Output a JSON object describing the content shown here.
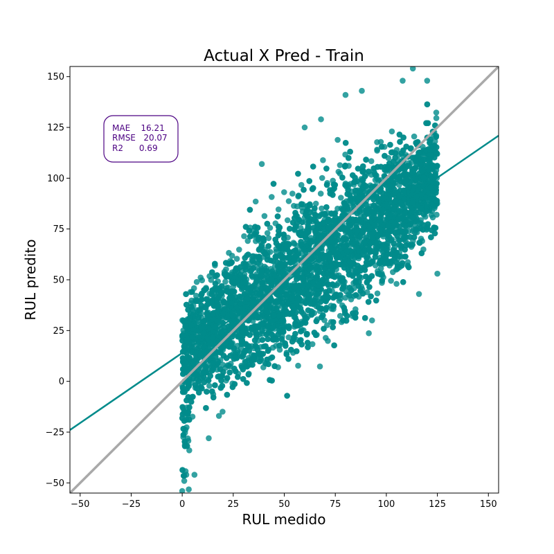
{
  "chart_data": {
    "type": "scatter",
    "title": "Actual X Pred - Train",
    "xlabel": "RUL medido",
    "ylabel": "RUL predito",
    "xlim": [
      -55,
      155
    ],
    "ylim": [
      -55,
      155
    ],
    "xticks": [
      -50,
      -25,
      0,
      25,
      50,
      75,
      100,
      125,
      150
    ],
    "yticks": [
      -50,
      -25,
      0,
      25,
      50,
      75,
      100,
      125,
      150
    ],
    "grid": false,
    "colors": {
      "points": "#008b8b",
      "fit_line": "#008b8b",
      "identity_line": "#a9a9a9",
      "metrics_text": "#4b0082"
    },
    "series": [
      {
        "kind": "points",
        "x_range": [
          0,
          125
        ],
        "density": "dense band of points around the fit line, spread about ±40 units",
        "notable_points": [
          {
            "x": 0,
            "y": -54
          },
          {
            "x": 1,
            "y": -49
          },
          {
            "x": 2,
            "y": -46
          },
          {
            "x": 6,
            "y": -46
          },
          {
            "x": 13,
            "y": -28
          },
          {
            "x": 18,
            "y": -17
          },
          {
            "x": 93,
            "y": 30
          },
          {
            "x": 105,
            "y": 48
          },
          {
            "x": 116,
            "y": 43
          },
          {
            "x": 125,
            "y": 53
          },
          {
            "x": 80,
            "y": 141
          },
          {
            "x": 88,
            "y": 143
          },
          {
            "x": 108,
            "y": 148
          },
          {
            "x": 113,
            "y": 154
          },
          {
            "x": 120,
            "y": 148
          },
          {
            "x": 68,
            "y": 129
          },
          {
            "x": 60,
            "y": 125
          },
          {
            "x": 39,
            "y": 107
          }
        ]
      },
      {
        "kind": "fit_line",
        "slope": 0.69,
        "intercept": 14
      },
      {
        "kind": "identity_line",
        "slope": 1,
        "intercept": 0
      }
    ],
    "annotation": {
      "lines": [
        "MAE    16.21",
        "RMSE   20.07",
        "R2      0.69"
      ],
      "position": "top-left"
    }
  }
}
